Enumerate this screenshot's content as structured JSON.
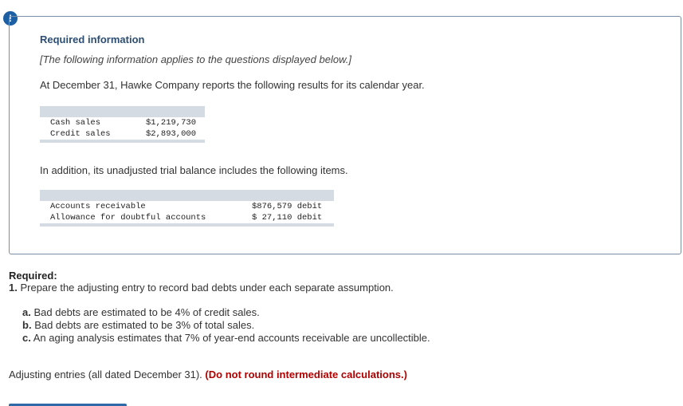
{
  "alert_icon": "!",
  "info": {
    "title": "Required information",
    "note": "[The following information applies to the questions displayed below.]",
    "intro": "At December 31, Hawke Company reports the following results for its calendar year.",
    "sales_table": [
      {
        "label": "Cash sales",
        "value": "$1,219,730"
      },
      {
        "label": "Credit sales",
        "value": "$2,893,000"
      }
    ],
    "intro2": "In addition, its unadjusted trial balance includes the following items.",
    "trial_table": [
      {
        "label": "Accounts receivable",
        "value": "$876,579 debit"
      },
      {
        "label": "Allowance for doubtful accounts",
        "value": "$ 27,110 debit"
      }
    ]
  },
  "required": {
    "heading": "Required:",
    "q_number": "1.",
    "q_text": "Prepare the adjusting entry to record bad debts under each separate assumption.",
    "options": [
      {
        "letter": "a.",
        "text": "Bad debts are estimated to be 4% of credit sales."
      },
      {
        "letter": "b.",
        "text": "Bad debts are estimated to be 3% of total sales."
      },
      {
        "letter": "c.",
        "text": "An aging analysis estimates that 7% of year-end accounts receivable are uncollectible."
      }
    ],
    "adjusting_text": "Adjusting entries (all dated December 31).",
    "warning": "(Do not round intermediate calculations.)"
  }
}
